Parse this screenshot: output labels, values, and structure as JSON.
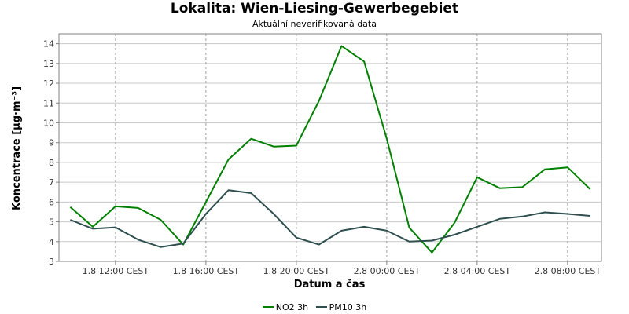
{
  "chart_data": {
    "type": "line",
    "title": "Lokalita: Wien-Liesing-Gewerbegebiet",
    "subtitle": "Aktuální neverifikovaná data",
    "xlabel": "Datum a čas",
    "ylabel": "Koncentrace [µg·m⁻³]",
    "ylim": [
      3,
      14.5
    ],
    "yticks": [
      3,
      4,
      5,
      6,
      7,
      8,
      9,
      10,
      11,
      12,
      13,
      14
    ],
    "xlim": [
      "1.8 09:30",
      "2.8 09:30"
    ],
    "xticks": [
      {
        "x": "1.8 12:00",
        "label": "1.8 12:00 CEST"
      },
      {
        "x": "1.8 16:00",
        "label": "1.8 16:00 CEST"
      },
      {
        "x": "1.8 20:00",
        "label": "1.8 20:00 CEST"
      },
      {
        "x": "2.8 00:00",
        "label": "2.8 00:00 CEST"
      },
      {
        "x": "2.8 04:00",
        "label": "2.8 04:00 CEST"
      },
      {
        "x": "2.8 08:00",
        "label": "2.8 08:00 CEST"
      }
    ],
    "grid": true,
    "legend_position": "bottom",
    "x": [
      "1.8 10:00",
      "1.8 11:00",
      "1.8 12:00",
      "1.8 13:00",
      "1.8 14:00",
      "1.8 15:00",
      "1.8 16:00",
      "1.8 17:00",
      "1.8 18:00",
      "1.8 19:00",
      "1.8 20:00",
      "1.8 21:00",
      "1.8 22:00",
      "1.8 23:00",
      "2.8 00:00",
      "2.8 01:00",
      "2.8 02:00",
      "2.8 03:00",
      "2.8 04:00",
      "2.8 05:00",
      "2.8 06:00",
      "2.8 07:00",
      "2.8 08:00",
      "2.8 09:00"
    ],
    "series": [
      {
        "name": "NO2 3h",
        "color": "#008000",
        "values": [
          5.75,
          4.75,
          5.78,
          5.7,
          5.1,
          3.85,
          6.0,
          8.15,
          9.2,
          8.8,
          8.85,
          11.1,
          13.88,
          13.1,
          9.2,
          4.7,
          3.45,
          4.95,
          7.25,
          6.7,
          6.75,
          7.65,
          7.75,
          6.65
        ]
      },
      {
        "name": "PM10 3h",
        "color": "#2f4f4f",
        "values": [
          5.1,
          4.65,
          4.72,
          4.1,
          3.72,
          3.9,
          5.4,
          6.6,
          6.45,
          5.4,
          4.2,
          3.85,
          4.55,
          4.75,
          4.55,
          4.0,
          4.05,
          4.35,
          4.75,
          5.15,
          5.27,
          5.48,
          5.4,
          5.3
        ]
      }
    ]
  }
}
